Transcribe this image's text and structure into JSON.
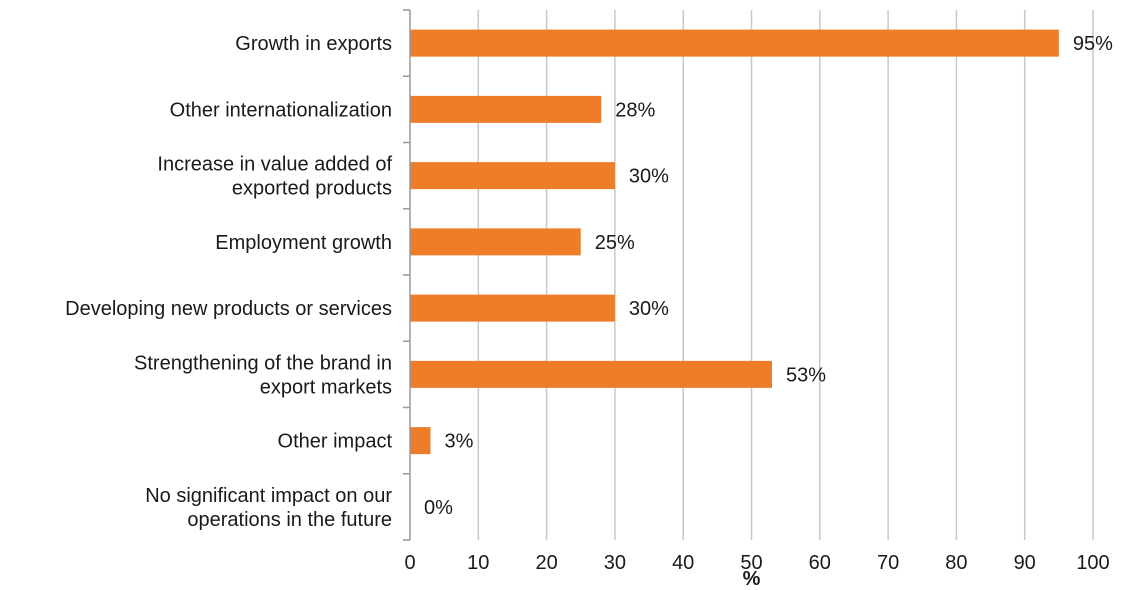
{
  "chart_data": {
    "type": "bar",
    "orientation": "horizontal",
    "categories": [
      [
        "Growth in exports"
      ],
      [
        "Other internationalization"
      ],
      [
        "Increase in value added of",
        "exported products"
      ],
      [
        "Employment growth"
      ],
      [
        "Developing new products or services"
      ],
      [
        "Strengthening of the brand in",
        "export markets"
      ],
      [
        "Other impact"
      ],
      [
        "No significant impact on our",
        "operations in the future"
      ]
    ],
    "values": [
      95,
      28,
      30,
      25,
      30,
      53,
      3,
      0
    ],
    "value_labels": [
      "95%",
      "28%",
      "30%",
      "25%",
      "30%",
      "53%",
      "3%",
      "0%"
    ],
    "xlabel": "%",
    "xlim": [
      0,
      100
    ],
    "xticks": [
      0,
      10,
      20,
      30,
      40,
      50,
      60,
      70,
      80,
      90,
      100
    ],
    "grid": "vertical",
    "colors": {
      "bar": "#EE7D2A",
      "grid": "#c8c8c8",
      "axis": "#999999"
    }
  }
}
